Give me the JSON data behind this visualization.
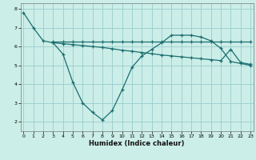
{
  "xlabel": "Humidex (Indice chaleur)",
  "bg_color": "#cceee8",
  "grid_color": "#99cccc",
  "line_color": "#1a6e6e",
  "line1": {
    "x": [
      0,
      1,
      2,
      3,
      4,
      5,
      6,
      7,
      8,
      9,
      10,
      11,
      12,
      13,
      14,
      15,
      16,
      17,
      18,
      19,
      20,
      21,
      22,
      23
    ],
    "y": [
      7.8,
      7.0,
      6.3,
      6.2,
      5.6,
      4.1,
      3.0,
      2.5,
      2.1,
      2.6,
      3.7,
      4.9,
      5.5,
      5.85,
      6.2,
      6.6,
      6.6,
      6.6,
      6.5,
      6.3,
      5.9,
      5.2,
      5.1,
      5.0
    ]
  },
  "line2": {
    "x": [
      3,
      4,
      5,
      6,
      7,
      8,
      9,
      10,
      11,
      12,
      13,
      14,
      15,
      16,
      17,
      18,
      19,
      20,
      21,
      22,
      23
    ],
    "y": [
      6.25,
      6.25,
      6.25,
      6.25,
      6.25,
      6.25,
      6.25,
      6.25,
      6.25,
      6.25,
      6.25,
      6.25,
      6.25,
      6.25,
      6.25,
      6.25,
      6.25,
      6.25,
      6.25,
      6.25,
      6.25
    ]
  },
  "line3": {
    "x": [
      3,
      4,
      5,
      6,
      7,
      8,
      9,
      10,
      11,
      12,
      13,
      14,
      15,
      16,
      17,
      18,
      19,
      20,
      21,
      22,
      23
    ],
    "y": [
      6.2,
      6.15,
      6.1,
      6.05,
      6.0,
      5.95,
      5.88,
      5.8,
      5.75,
      5.68,
      5.62,
      5.55,
      5.5,
      5.45,
      5.4,
      5.35,
      5.3,
      5.25,
      5.85,
      5.15,
      5.05
    ]
  },
  "xlim": [
    -0.3,
    23.3
  ],
  "ylim": [
    1.5,
    8.3
  ],
  "yticks": [
    2,
    3,
    4,
    5,
    6,
    7,
    8
  ],
  "xticks": [
    0,
    1,
    2,
    3,
    4,
    5,
    6,
    7,
    8,
    9,
    10,
    11,
    12,
    13,
    14,
    15,
    16,
    17,
    18,
    19,
    20,
    21,
    22,
    23
  ]
}
